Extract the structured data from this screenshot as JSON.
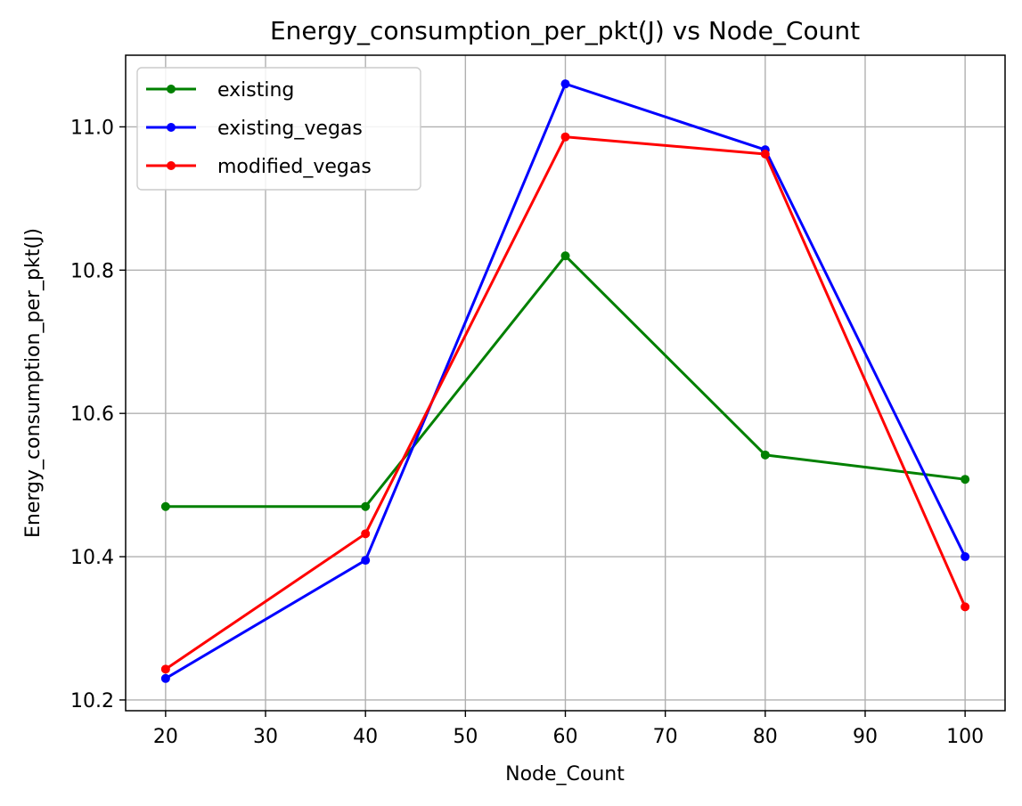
{
  "chart_data": {
    "type": "line",
    "title": "Energy_consumption_per_pkt(J) vs Node_Count",
    "xlabel": "Node_Count",
    "ylabel": "Energy_consumption_per_pkt(J)",
    "x": [
      20,
      40,
      60,
      80,
      100
    ],
    "xlim": [
      16,
      104
    ],
    "ylim": [
      10.185,
      11.1
    ],
    "xticks": [
      20,
      30,
      40,
      50,
      60,
      70,
      80,
      90,
      100
    ],
    "yticks": [
      10.2,
      10.4,
      10.6,
      10.8,
      11.0
    ],
    "ytick_labels": [
      "10.2",
      "10.4",
      "10.6",
      "10.8",
      "11.0"
    ],
    "grid": true,
    "legend_position": "top-left",
    "series": [
      {
        "name": "existing",
        "color": "#008000",
        "values": [
          10.47,
          10.47,
          10.82,
          10.542,
          10.508
        ]
      },
      {
        "name": "existing_vegas",
        "color": "#0000ff",
        "values": [
          10.23,
          10.395,
          11.06,
          10.968,
          10.4
        ]
      },
      {
        "name": "modified_vegas",
        "color": "#ff0000",
        "values": [
          10.243,
          10.432,
          10.986,
          10.962,
          10.33
        ]
      }
    ]
  }
}
